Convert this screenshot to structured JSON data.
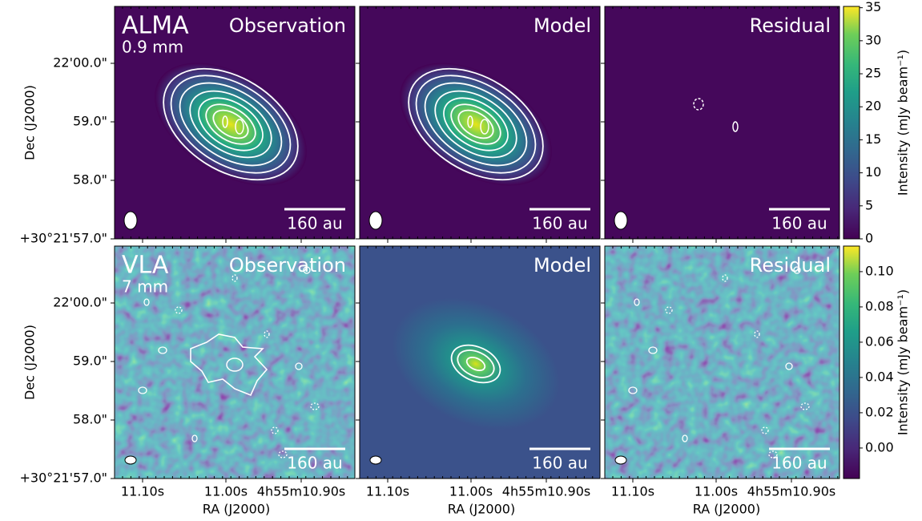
{
  "figure": {
    "x_axis": {
      "label": "RA (J2000)",
      "ticks": [
        "11.10s",
        "11.00s",
        "4h55m10.90s"
      ]
    },
    "y_axis": {
      "label": "Dec (J2000)",
      "ticks": [
        "+30°21'57.0\"",
        "58.0\"",
        "59.0\"",
        "22'00.0\""
      ]
    },
    "scalebar": "160 au",
    "rows": [
      {
        "instrument": "ALMA",
        "wavelength": "0.9 mm",
        "panels": [
          {
            "title": "Observation"
          },
          {
            "title": "Model"
          },
          {
            "title": "Residual"
          }
        ],
        "colorbar": {
          "label": "Intensity (mJy beam⁻¹)",
          "lim": [
            0,
            35.2
          ],
          "ticks": [
            0,
            5,
            10,
            15,
            20,
            25,
            30,
            35
          ]
        }
      },
      {
        "instrument": "VLA",
        "wavelength": "7 mm",
        "panels": [
          {
            "title": "Observation"
          },
          {
            "title": "Model"
          },
          {
            "title": "Residual"
          }
        ],
        "colorbar": {
          "label": "Intensity (mJy beam⁻¹)",
          "lim": [
            -0.0173,
            0.1145
          ],
          "ticks": [
            {
              "value": 0,
              "label": "0.00"
            },
            0.02,
            0.04,
            0.06,
            0.08,
            {
              "value": 0.1,
              "label": "0.10"
            }
          ]
        }
      }
    ]
  }
}
